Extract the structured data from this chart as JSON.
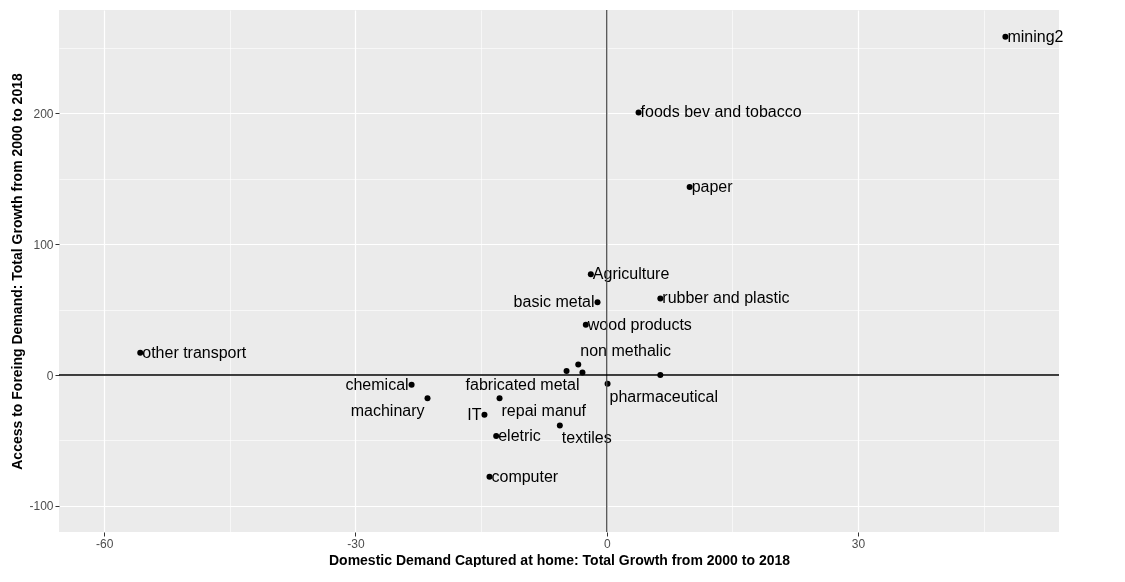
{
  "chart_data": {
    "type": "scatter",
    "xlabel": "Domestic Demand Captured at home: Total Growth from 2000 to 2018",
    "ylabel": "Access to Foreing Demand: Total Growth from 2000 to 2018",
    "series": [
      {
        "color": "#000000",
        "x": [
          47.6,
          3.8,
          9.9,
          -1.9,
          6.4,
          -1.1,
          -2.5,
          -3.4,
          -4.8,
          -2.9,
          6.4,
          0.1,
          -23.3,
          -21.4,
          -12.8,
          -14.6,
          -13.2,
          -5.6,
          -14.0,
          -55.7
        ],
        "values": [
          258.5,
          200.7,
          143.7,
          77,
          58.5,
          55.6,
          38.5,
          8.1,
          3,
          2,
          0,
          -6.7,
          -7.4,
          -17.8,
          -17.8,
          -30.4,
          -46.7,
          -38.5,
          -77.8,
          17
        ],
        "value_labels": [
          "mining2",
          "foods bev and tobacco",
          "paper",
          "Agriculture",
          "rubber and plastic",
          "basic metal",
          "wood products",
          "non methalic",
          null,
          "fabricated metal",
          null,
          "pharmaceutical",
          "chemical",
          "machinary",
          "repai manuf",
          "IT",
          "eletric",
          "textiles",
          "computer",
          "other transport"
        ]
      }
    ],
    "xlim": [
      -65.4,
      54
    ],
    "ylim": [
      -120,
      279
    ],
    "xticks": [
      {
        "value": -45,
        "label": null
      },
      -60,
      -30,
      {
        "value": -15,
        "label": null
      },
      0,
      {
        "value": 15,
        "label": null
      },
      30,
      {
        "value": 45,
        "label": null
      }
    ],
    "yticks": [
      -100,
      {
        "value": -50,
        "label": null
      },
      0,
      {
        "value": 50,
        "label": null
      },
      100,
      {
        "value": 150,
        "label": null
      },
      200,
      {
        "value": 250,
        "label": null
      }
    ],
    "grid": true,
    "marker": "circle",
    "ref_lines": [
      {
        "axis": "x",
        "value": 0,
        "color": "#4d4d4d"
      },
      {
        "axis": "y",
        "value": 0,
        "color": "#000000"
      }
    ]
  }
}
